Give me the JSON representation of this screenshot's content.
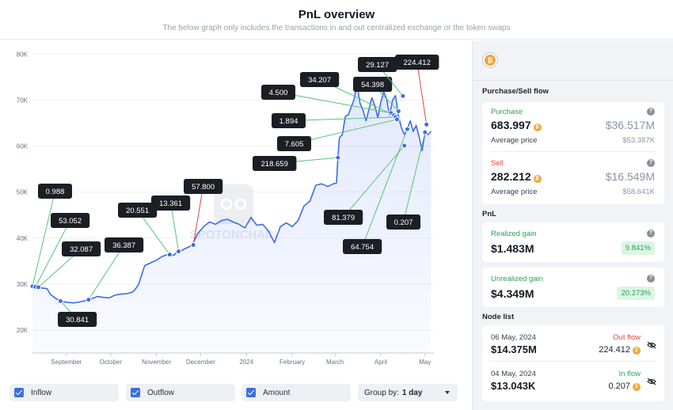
{
  "header": {
    "title": "PnL overview",
    "subtitle": "The below graph only includes the transactions in and out centralized exchange or the token swaps"
  },
  "chart_data": {
    "type": "line",
    "title": "PnL overview",
    "y_ticks": [
      "80K",
      "70K",
      "60K",
      "50K",
      "40K",
      "30K",
      "20K"
    ],
    "y_tick_values": [
      80000,
      70000,
      60000,
      50000,
      40000,
      30000,
      20000
    ],
    "ylim": [
      15000,
      83000
    ],
    "x_ticks": [
      "September",
      "October",
      "November",
      "December",
      "2024",
      "February",
      "March",
      "April",
      "May"
    ],
    "x_tick_days": [
      23,
      53,
      84,
      114,
      145,
      176,
      205,
      236,
      266
    ],
    "x_range_days": [
      0,
      272
    ],
    "price_series": [
      [
        0,
        29500
      ],
      [
        5,
        29200
      ],
      [
        10,
        29000
      ],
      [
        12,
        27800
      ],
      [
        16,
        26800
      ],
      [
        20,
        26200
      ],
      [
        24,
        26000
      ],
      [
        28,
        25900
      ],
      [
        32,
        26100
      ],
      [
        36,
        26400
      ],
      [
        40,
        26800
      ],
      [
        44,
        27300
      ],
      [
        48,
        27100
      ],
      [
        52,
        27000
      ],
      [
        56,
        27600
      ],
      [
        60,
        27800
      ],
      [
        64,
        27900
      ],
      [
        68,
        28300
      ],
      [
        70,
        29000
      ],
      [
        72,
        30000
      ],
      [
        74,
        32000
      ],
      [
        76,
        34000
      ],
      [
        80,
        34600
      ],
      [
        84,
        35200
      ],
      [
        88,
        36000
      ],
      [
        92,
        36500
      ],
      [
        96,
        36300
      ],
      [
        98,
        37000
      ],
      [
        101,
        37300
      ],
      [
        104,
        37800
      ],
      [
        108,
        38400
      ],
      [
        112,
        41000
      ],
      [
        116,
        42500
      ],
      [
        120,
        43500
      ],
      [
        124,
        43000
      ],
      [
        128,
        43800
      ],
      [
        132,
        44100
      ],
      [
        136,
        43500
      ],
      [
        140,
        43000
      ],
      [
        144,
        42200
      ],
      [
        148,
        44500
      ],
      [
        152,
        42800
      ],
      [
        156,
        43000
      ],
      [
        160,
        41500
      ],
      [
        164,
        39000
      ],
      [
        168,
        42500
      ],
      [
        172,
        43300
      ],
      [
        176,
        42500
      ],
      [
        180,
        43800
      ],
      [
        184,
        47000
      ],
      [
        188,
        48000
      ],
      [
        192,
        51500
      ],
      [
        196,
        51800
      ],
      [
        200,
        51200
      ],
      [
        204,
        51800
      ],
      [
        206,
        52000
      ],
      [
        207,
        57500
      ],
      [
        208,
        61800
      ],
      [
        210,
        62500
      ],
      [
        212,
        66500
      ],
      [
        214,
        66800
      ],
      [
        216,
        68500
      ],
      [
        218,
        70200
      ],
      [
        219,
        72000
      ],
      [
        220,
        73500
      ],
      [
        221,
        71200
      ],
      [
        222,
        69300
      ],
      [
        224,
        67800
      ],
      [
        226,
        65500
      ],
      [
        228,
        68000
      ],
      [
        230,
        70500
      ],
      [
        232,
        68800
      ],
      [
        234,
        66200
      ],
      [
        236,
        69500
      ],
      [
        238,
        71800
      ],
      [
        240,
        70300
      ],
      [
        241,
        68300
      ],
      [
        242,
        66700
      ],
      [
        244,
        70000
      ],
      [
        246,
        71000
      ],
      [
        248,
        66500
      ],
      [
        250,
        64000
      ],
      [
        252,
        62500
      ],
      [
        254,
        63800
      ],
      [
        256,
        65500
      ],
      [
        258,
        63200
      ],
      [
        260,
        64500
      ],
      [
        262,
        62000
      ],
      [
        264,
        59000
      ],
      [
        265,
        61000
      ],
      [
        266,
        63000
      ],
      [
        268,
        62500
      ],
      [
        270,
        63200
      ]
    ],
    "transactions": [
      {
        "label": "0.988",
        "day": 0,
        "price": 29500
      },
      {
        "label": "53.052",
        "day": 2,
        "price": 29400
      },
      {
        "label": "32.087",
        "day": 4,
        "price": 29300
      },
      {
        "label": "30.841",
        "day": 19,
        "price": 26300
      },
      {
        "label": "36.387",
        "day": 38,
        "price": 26600
      },
      {
        "label": "20.551",
        "day": 93,
        "price": 36400
      },
      {
        "label": "13.361",
        "day": 99,
        "price": 37100
      },
      {
        "label": "57.800",
        "day": 109,
        "price": 38500
      },
      {
        "label": "218.659",
        "day": 207,
        "price": 57500
      },
      {
        "label": "4.500",
        "day": 243,
        "price": 67200
      },
      {
        "label": "34.207",
        "day": 245,
        "price": 66700
      },
      {
        "label": "1.894",
        "day": 246,
        "price": 66300
      },
      {
        "label": "7.605",
        "day": 247,
        "price": 65800
      },
      {
        "label": "54.398",
        "day": 248,
        "price": 67600
      },
      {
        "label": "29.127",
        "day": 251,
        "price": 70900
      },
      {
        "label": "81.379",
        "day": 252,
        "price": 60100
      },
      {
        "label": "64.754",
        "day": 254,
        "price": 63700
      },
      {
        "label": "224.412",
        "day": 267,
        "price": 64700
      },
      {
        "label": "0.207",
        "day": 266,
        "price": 63000
      }
    ]
  },
  "watermark": "SPOTONCHAIN",
  "legend": {
    "inflow": "Inflow",
    "outflow": "Outflow",
    "amount": "Amount",
    "groupby_label": "Group by:",
    "groupby_value": "1 day"
  },
  "panel": {
    "coin_symbol": "₿",
    "flow_title": "Purchase/Sell flow",
    "purchase": {
      "label": "Purchase",
      "amount": "683.997",
      "usd": "$36.517M",
      "avg_label": "Average price",
      "avg_value": "$53.387K"
    },
    "sell": {
      "label": "Sell",
      "amount": "282.212",
      "usd": "$16.549M",
      "avg_label": "Average price",
      "avg_value": "$58.641K"
    },
    "pnl_title": "PnL",
    "realized": {
      "label": "Realized gain",
      "value": "$1.483M",
      "pct": "9.841%"
    },
    "unrealized": {
      "label": "Unrealized gain",
      "value": "$4.349M",
      "pct": "20.273%"
    },
    "node_title": "Node list",
    "nodes": [
      {
        "date": "06 May, 2024",
        "usd": "$14.375M",
        "flow": "Out flow",
        "amount": "224.412"
      },
      {
        "date": "04 May, 2024",
        "usd": "$13.043K",
        "flow": "In flow",
        "amount": "0.207"
      }
    ]
  },
  "colors": {
    "line": "#3e6ce6",
    "inflow_connector": "#57c47a",
    "outflow_connector": "#e0473f",
    "purchase": "#27a35a",
    "sell": "#e0473f",
    "label_bg": "#1b1e24"
  }
}
